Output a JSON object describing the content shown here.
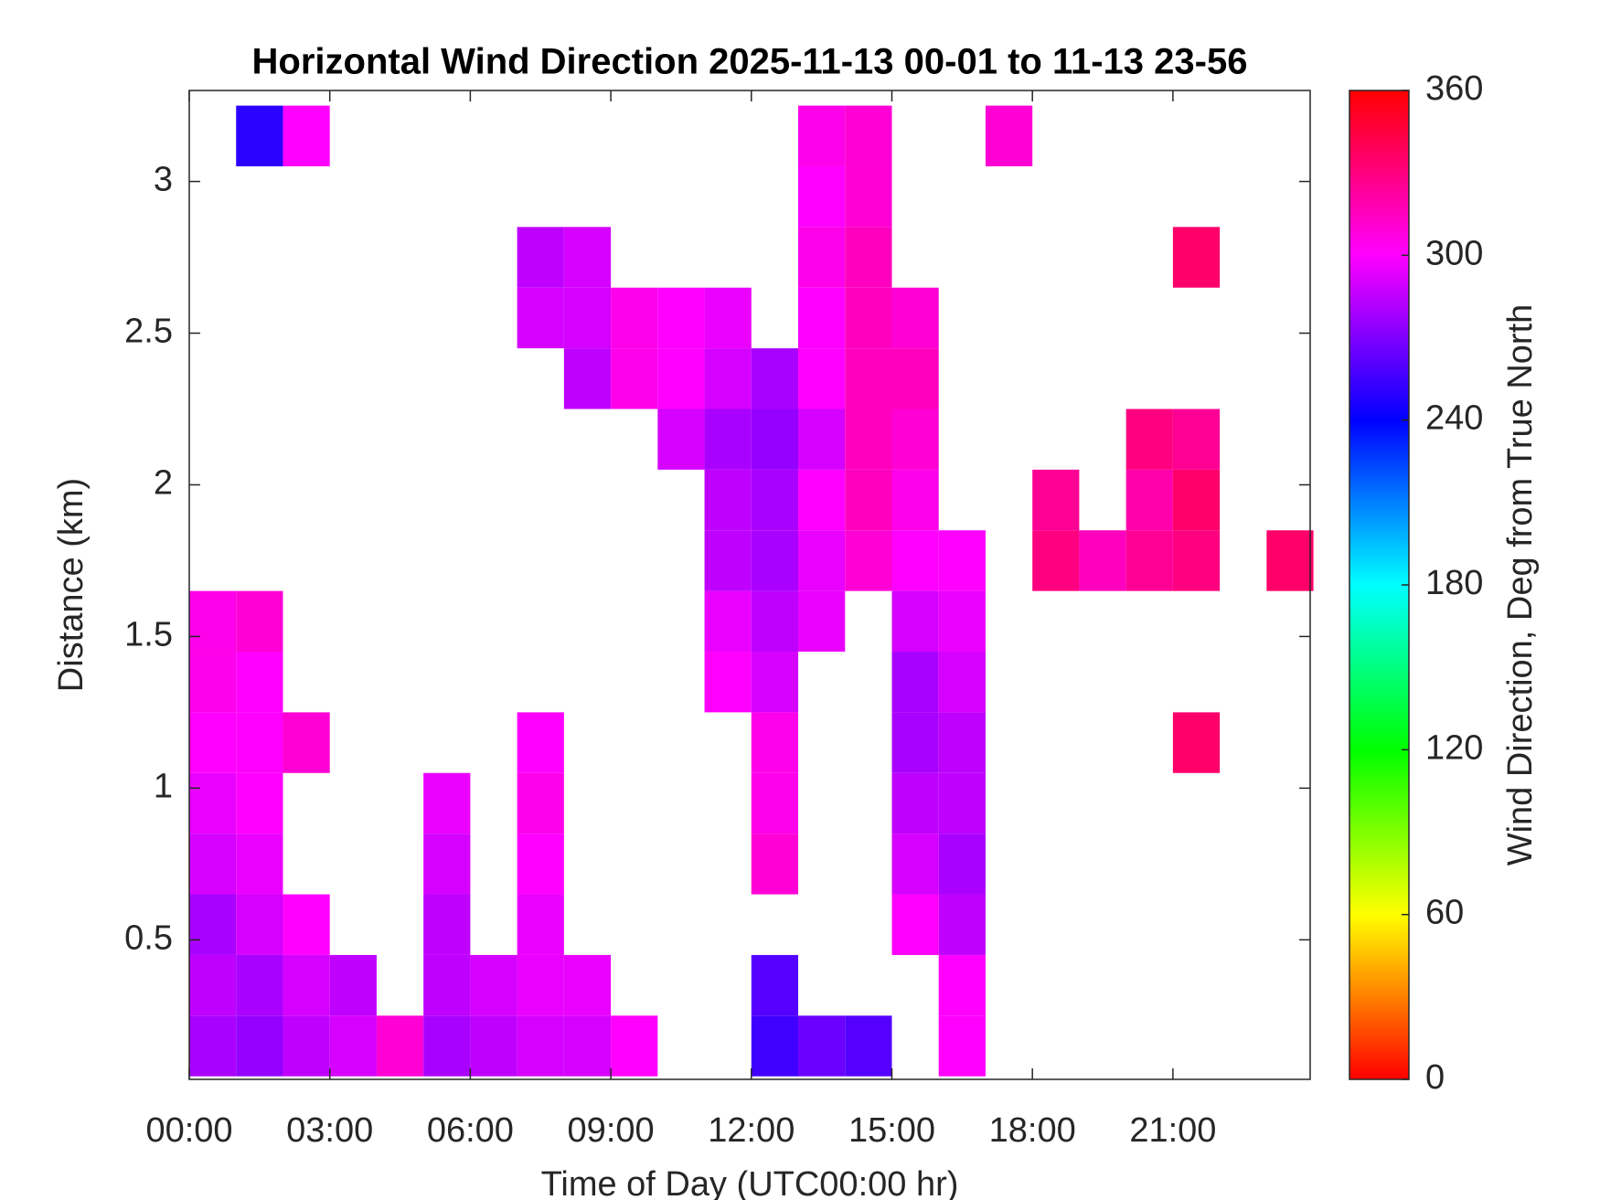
{
  "chart_data": {
    "type": "heatmap",
    "title": "Horizontal Wind Direction 2025-11-13 00-01 to 11-13 23-56",
    "xlabel": "Time of Day (UTC00:00 hr)",
    "ylabel": "Distance (km)",
    "colorbar_label": "Wind Direction, Deg from True North",
    "colormap": "hsv",
    "xlim": [
      0,
      23.93
    ],
    "ylim": [
      0.04,
      3.3
    ],
    "clim": [
      0,
      360
    ],
    "xticks": [
      {
        "value": 0,
        "label": "00:00"
      },
      {
        "value": 3,
        "label": "03:00"
      },
      {
        "value": 6,
        "label": "06:00"
      },
      {
        "value": 9,
        "label": "09:00"
      },
      {
        "value": 12,
        "label": "12:00"
      },
      {
        "value": 15,
        "label": "15:00"
      },
      {
        "value": 18,
        "label": "18:00"
      },
      {
        "value": 21,
        "label": "21:00"
      }
    ],
    "yticks": [
      0.5,
      1,
      1.5,
      2,
      2.5,
      3
    ],
    "cticks": [
      0,
      60,
      120,
      180,
      240,
      300,
      360
    ],
    "x": [
      0.5,
      1.5,
      2.5,
      3.5,
      4.5,
      5.5,
      6.5,
      7.5,
      8.5,
      9.5,
      10.5,
      11.5,
      12.5,
      13.5,
      14.5,
      15.5,
      16.5,
      17.5,
      18.5,
      19.5,
      20.5,
      21.5,
      22.5,
      23.5
    ],
    "y": [
      0.15,
      0.35,
      0.55,
      0.75,
      0.95,
      1.15,
      1.35,
      1.55,
      1.75,
      1.95,
      2.15,
      2.35,
      2.55,
      2.75,
      2.95,
      3.15
    ],
    "z": [
      [
        280,
        275,
        285,
        290,
        310,
        280,
        285,
        290,
        290,
        300,
        null,
        null,
        255,
        265,
        260,
        null,
        300,
        null,
        null,
        null,
        null,
        null,
        null,
        null
      ],
      [
        285,
        280,
        290,
        285,
        null,
        285,
        290,
        295,
        295,
        null,
        null,
        null,
        260,
        null,
        null,
        null,
        300,
        null,
        null,
        null,
        null,
        null,
        null,
        null
      ],
      [
        280,
        290,
        300,
        null,
        null,
        285,
        null,
        295,
        null,
        null,
        null,
        null,
        null,
        null,
        null,
        300,
        285,
        null,
        null,
        null,
        null,
        null,
        null,
        null
      ],
      [
        290,
        295,
        null,
        null,
        null,
        290,
        null,
        300,
        null,
        null,
        null,
        null,
        310,
        null,
        null,
        290,
        280,
        null,
        null,
        null,
        null,
        null,
        null,
        null
      ],
      [
        295,
        300,
        null,
        null,
        null,
        295,
        null,
        305,
        null,
        null,
        null,
        null,
        305,
        null,
        null,
        285,
        285,
        null,
        null,
        null,
        null,
        null,
        null,
        null
      ],
      [
        300,
        300,
        310,
        null,
        null,
        null,
        null,
        300,
        null,
        null,
        null,
        null,
        305,
        null,
        null,
        280,
        285,
        null,
        null,
        null,
        null,
        335,
        null,
        null
      ],
      [
        305,
        300,
        null,
        null,
        null,
        null,
        null,
        null,
        null,
        null,
        null,
        300,
        290,
        null,
        null,
        280,
        290,
        null,
        null,
        null,
        null,
        null,
        null,
        null
      ],
      [
        305,
        310,
        null,
        null,
        null,
        null,
        null,
        null,
        null,
        null,
        null,
        295,
        285,
        295,
        null,
        290,
        295,
        null,
        null,
        null,
        null,
        null,
        null,
        null
      ],
      [
        null,
        null,
        null,
        null,
        null,
        null,
        null,
        null,
        null,
        null,
        null,
        285,
        280,
        295,
        310,
        300,
        300,
        null,
        330,
        315,
        325,
        330,
        null,
        335
      ],
      [
        null,
        null,
        null,
        null,
        null,
        null,
        null,
        null,
        null,
        null,
        null,
        285,
        280,
        300,
        315,
        305,
        null,
        null,
        325,
        null,
        320,
        335,
        null,
        null
      ],
      [
        null,
        null,
        null,
        null,
        null,
        null,
        null,
        null,
        null,
        null,
        290,
        280,
        275,
        290,
        315,
        310,
        null,
        null,
        null,
        null,
        330,
        325,
        null,
        null
      ],
      [
        null,
        null,
        null,
        null,
        null,
        null,
        null,
        null,
        285,
        305,
        300,
        290,
        280,
        300,
        315,
        315,
        null,
        null,
        null,
        null,
        null,
        null,
        null,
        null
      ],
      [
        null,
        null,
        null,
        null,
        null,
        null,
        null,
        290,
        290,
        305,
        300,
        295,
        null,
        300,
        315,
        310,
        null,
        null,
        null,
        null,
        null,
        null,
        null,
        null
      ],
      [
        null,
        null,
        null,
        null,
        null,
        null,
        null,
        285,
        290,
        null,
        null,
        null,
        null,
        305,
        315,
        null,
        null,
        null,
        null,
        null,
        null,
        335,
        null,
        null
      ],
      [
        null,
        null,
        null,
        null,
        null,
        null,
        null,
        null,
        null,
        null,
        null,
        null,
        null,
        300,
        310,
        null,
        null,
        null,
        null,
        null,
        null,
        null,
        null,
        null
      ],
      [
        null,
        250,
        300,
        null,
        null,
        null,
        null,
        null,
        null,
        null,
        null,
        null,
        null,
        305,
        310,
        null,
        null,
        310,
        null,
        null,
        null,
        null,
        null,
        null
      ]
    ]
  }
}
